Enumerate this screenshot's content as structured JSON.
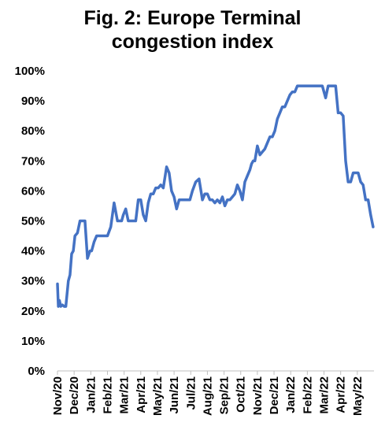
{
  "chart_data": {
    "type": "line",
    "title_lines": [
      "Fig. 2: Europe Terminal",
      "congestion index"
    ],
    "xlabel": "",
    "ylabel": "",
    "y_ticks": [
      "0%",
      "10%",
      "20%",
      "30%",
      "40%",
      "50%",
      "60%",
      "70%",
      "80%",
      "90%",
      "100%"
    ],
    "ylim": [
      0,
      100
    ],
    "x_tick_labels": [
      "Nov/20",
      "Dec/20",
      "Jan/21",
      "Feb/21",
      "Mar/21",
      "Apr/21",
      "May/21",
      "Jun/21",
      "Jul/21",
      "Aug/21",
      "Sep/21",
      "Oct/21",
      "Nov/21",
      "Dec/21",
      "Jan/22",
      "Feb/22",
      "Mar/22",
      "Apr/22",
      "May/22"
    ],
    "xlim": [
      0,
      19
    ],
    "grid": false,
    "line_color": "#4472C4",
    "series": [
      {
        "x": [
          0,
          0.05,
          0.12,
          0.2,
          0.3,
          0.4,
          0.5,
          0.65,
          0.75,
          0.85,
          0.95,
          1.05,
          1.2,
          1.35,
          1.5,
          1.65,
          1.8,
          1.95,
          2.05,
          2.2,
          2.35,
          2.5,
          2.65,
          2.8,
          3.0,
          3.2,
          3.4,
          3.6,
          3.75,
          3.85,
          3.95,
          4.1,
          4.25,
          4.4,
          4.55,
          4.7,
          4.85,
          5.0,
          5.15,
          5.3,
          5.45,
          5.6,
          5.75,
          5.9,
          6.05,
          6.2,
          6.35,
          6.55,
          6.7,
          6.85,
          7.0,
          7.15,
          7.3,
          7.45,
          7.55,
          7.65,
          7.75,
          7.85,
          7.95,
          8.1,
          8.3,
          8.5,
          8.7,
          8.85,
          9.0,
          9.15,
          9.3,
          9.45,
          9.6,
          9.75,
          9.9,
          10.05,
          10.2,
          10.35,
          10.5,
          10.65,
          10.8,
          10.95,
          11.1,
          11.25,
          11.4,
          11.55,
          11.65,
          11.75,
          11.85,
          12.0,
          12.15,
          12.3,
          12.45,
          12.6,
          12.75,
          12.9,
          13.05,
          13.2,
          13.35,
          13.5,
          13.65,
          13.8,
          13.95,
          14.1,
          14.25,
          14.4,
          14.55,
          14.7,
          14.85,
          15.0,
          15.3,
          15.6,
          15.9,
          16.1,
          16.25,
          16.4,
          16.55,
          16.7,
          16.85,
          17.0,
          17.15,
          17.3,
          17.45,
          17.6,
          17.75,
          17.9,
          18.05,
          18.2,
          18.35,
          18.5,
          18.65,
          18.8,
          18.95
        ],
        "values": [
          29,
          21.5,
          23.5,
          21.5,
          22,
          21.5,
          21.5,
          30,
          32,
          39,
          40,
          45,
          46,
          50,
          50,
          50,
          37.5,
          40,
          40,
          43,
          45,
          45,
          45,
          45,
          45,
          48,
          56,
          50,
          50,
          50,
          52,
          54,
          50,
          50,
          50,
          50,
          57,
          57,
          52,
          50,
          56,
          59,
          59,
          61,
          61,
          62,
          61,
          68,
          66,
          60,
          58,
          54,
          57,
          57,
          57,
          57,
          57,
          57,
          57,
          60,
          63,
          64,
          57,
          59,
          59,
          57,
          57,
          56,
          57,
          56,
          58,
          55,
          57,
          57,
          58,
          59,
          62,
          60,
          57,
          63,
          65,
          67,
          69,
          70,
          70,
          75,
          72,
          73,
          74,
          76,
          78,
          78,
          80,
          84,
          86,
          88,
          88,
          90,
          92,
          93,
          93,
          95,
          95,
          95,
          95,
          95,
          95,
          95,
          95,
          91,
          95,
          95,
          95,
          95,
          86,
          86,
          85,
          70,
          63,
          63,
          66,
          66,
          66,
          63,
          62,
          57,
          57,
          52,
          48
        ]
      }
    ]
  }
}
